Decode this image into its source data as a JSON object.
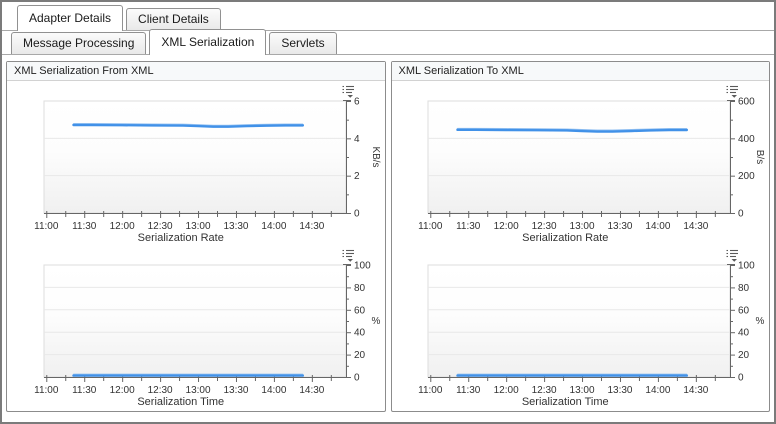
{
  "tabs_main": [
    {
      "label": "Adapter Details",
      "active": true
    },
    {
      "label": "Client Details",
      "active": false
    }
  ],
  "tabs_sub": [
    {
      "label": "Message Processing",
      "active": false
    },
    {
      "label": "XML Serialization",
      "active": true
    },
    {
      "label": "Servlets",
      "active": false
    }
  ],
  "panels": [
    {
      "title": "XML Serialization From XML"
    },
    {
      "title": "XML Serialization To XML"
    }
  ],
  "colors": {
    "line": "#4191e8",
    "axis": "#666666",
    "grid": "#e8e8e8",
    "tick_text": "#333333",
    "plot_fade": "#f0f0f0"
  },
  "icons": {
    "legend_menu": "legend-menu-icon"
  },
  "chart_data": [
    {
      "type": "line",
      "panel": 0,
      "title": "Serialization Rate",
      "ylabel": "KB/s",
      "ylabel_rotated": true,
      "ylim": [
        0,
        6
      ],
      "ytick_major": 2,
      "ytick_minor": 1,
      "xlim_hours": [
        10.97,
        14.95
      ],
      "xtick_label_step": 0.5,
      "xtick_minor_step": 0.25,
      "xtick_labels": [
        "11:00",
        "11:30",
        "12:00",
        "12:30",
        "13:00",
        "13:30",
        "14:00",
        "14:30"
      ],
      "grid": true,
      "legend_position": "none",
      "series": [
        {
          "name": "Serialization Rate",
          "points": [
            [
              11.36,
              4.72
            ],
            [
              11.6,
              4.72
            ],
            [
              12.0,
              4.71
            ],
            [
              12.4,
              4.7
            ],
            [
              12.8,
              4.69
            ],
            [
              13.0,
              4.66
            ],
            [
              13.2,
              4.63
            ],
            [
              13.4,
              4.63
            ],
            [
              13.65,
              4.66
            ],
            [
              13.9,
              4.68
            ],
            [
              14.15,
              4.7
            ],
            [
              14.38,
              4.7
            ]
          ]
        }
      ]
    },
    {
      "type": "line",
      "panel": 0,
      "title": "Serialization Time",
      "ylabel": "%",
      "ylabel_rotated": false,
      "ylim": [
        0,
        100
      ],
      "ytick_major": 20,
      "ytick_minor": 10,
      "xlim_hours": [
        10.97,
        14.95
      ],
      "xtick_label_step": 0.5,
      "xtick_minor_step": 0.25,
      "xtick_labels": [
        "11:00",
        "11:30",
        "12:00",
        "12:30",
        "13:00",
        "13:30",
        "14:00",
        "14:30"
      ],
      "grid": true,
      "legend_position": "none",
      "series": [
        {
          "name": "Serialization Time",
          "points": [
            [
              11.36,
              1.3
            ],
            [
              11.8,
              1.3
            ],
            [
              12.3,
              1.3
            ],
            [
              12.8,
              1.3
            ],
            [
              13.3,
              1.3
            ],
            [
              13.8,
              1.3
            ],
            [
              14.15,
              1.3
            ],
            [
              14.38,
              1.3
            ]
          ]
        }
      ]
    },
    {
      "type": "line",
      "panel": 1,
      "title": "Serialization Rate",
      "ylabel": "B/s",
      "ylabel_rotated": true,
      "ylim": [
        0,
        600
      ],
      "ytick_major": 200,
      "ytick_minor": 100,
      "xlim_hours": [
        10.97,
        14.95
      ],
      "xtick_label_step": 0.5,
      "xtick_minor_step": 0.25,
      "xtick_labels": [
        "11:00",
        "11:30",
        "12:00",
        "12:30",
        "13:00",
        "13:30",
        "14:00",
        "14:30"
      ],
      "grid": true,
      "legend_position": "none",
      "series": [
        {
          "name": "Serialization Rate",
          "points": [
            [
              11.36,
              446
            ],
            [
              11.6,
              446
            ],
            [
              12.0,
              445
            ],
            [
              12.4,
              444
            ],
            [
              12.8,
              443
            ],
            [
              13.0,
              440
            ],
            [
              13.2,
              437
            ],
            [
              13.4,
              437
            ],
            [
              13.65,
              440
            ],
            [
              13.9,
              443
            ],
            [
              14.15,
              445
            ],
            [
              14.38,
              445
            ]
          ]
        }
      ]
    },
    {
      "type": "line",
      "panel": 1,
      "title": "Serialization Time",
      "ylabel": "%",
      "ylabel_rotated": false,
      "ylim": [
        0,
        100
      ],
      "ytick_major": 20,
      "ytick_minor": 10,
      "xlim_hours": [
        10.97,
        14.95
      ],
      "xtick_label_step": 0.5,
      "xtick_minor_step": 0.25,
      "xtick_labels": [
        "11:00",
        "11:30",
        "12:00",
        "12:30",
        "13:00",
        "13:30",
        "14:00",
        "14:30"
      ],
      "grid": true,
      "legend_position": "none",
      "series": [
        {
          "name": "Serialization Time",
          "points": [
            [
              11.36,
              1.3
            ],
            [
              11.8,
              1.3
            ],
            [
              12.3,
              1.3
            ],
            [
              12.8,
              1.3
            ],
            [
              13.3,
              1.3
            ],
            [
              13.8,
              1.3
            ],
            [
              14.15,
              1.3
            ],
            [
              14.38,
              1.3
            ]
          ]
        }
      ]
    }
  ]
}
